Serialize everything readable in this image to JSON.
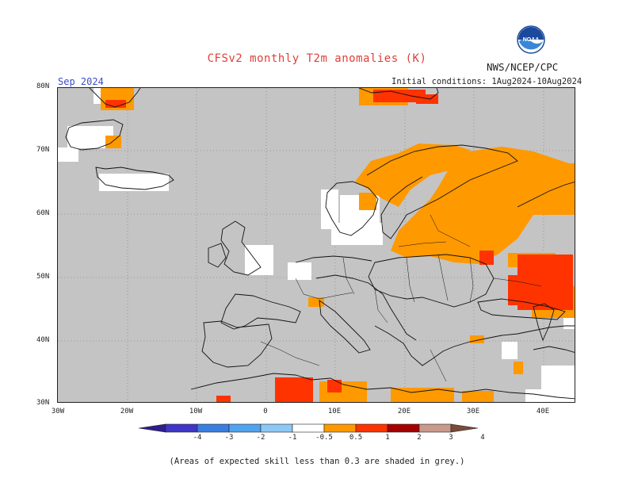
{
  "title": "CFSv2 monthly T2m anomalies (K)",
  "agency": "NWS/NCEP/CPC",
  "logo_text": "NOAA",
  "valid_month": "Sep 2024",
  "initial_conditions": "Initial conditions: 1Aug2024-10Aug2024",
  "lat_labels": [
    "80N",
    "70N",
    "60N",
    "50N",
    "40N",
    "30N"
  ],
  "lon_labels": [
    "30W",
    "20W",
    "10W",
    "0",
    "10E",
    "20E",
    "30E",
    "40E"
  ],
  "colorbar": {
    "labels": [
      "-4",
      "-3",
      "-2",
      "-1",
      "-0.5",
      "0.5",
      "1",
      "2",
      "3",
      "4"
    ],
    "colors": [
      "#2f1d8c",
      "#3f36c8",
      "#3a7ee0",
      "#50a3ee",
      "#8cc8f6",
      "#ffffff",
      "#ff9900",
      "#ff3300",
      "#a50000",
      "#c99a8c",
      "#7a4a3a"
    ]
  },
  "grey_color": "#c4c4c4",
  "footnote": "(Areas of expected skill less than 0.3 are shaded in grey.)"
}
